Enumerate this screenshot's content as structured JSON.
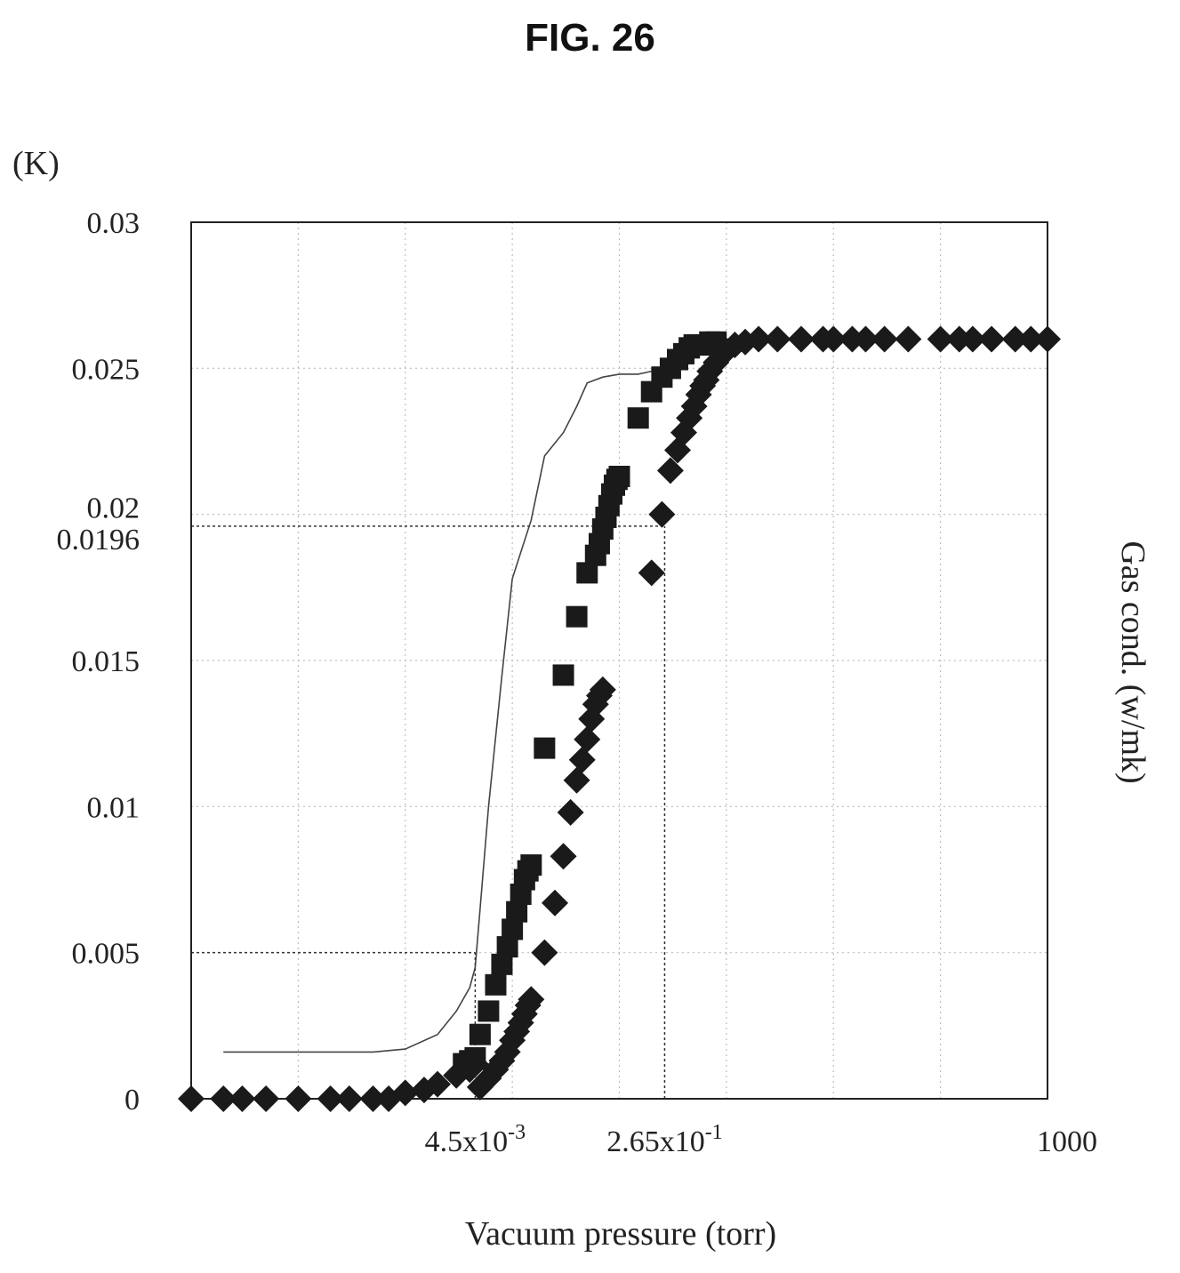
{
  "figure": {
    "title": "FIG. 26"
  },
  "chart_data": {
    "type": "scatter",
    "title": "",
    "ylabel_left": "(K)",
    "ylabel_right": "Gas cond. (w/mk)",
    "xlabel": "Vacuum pressure (torr)",
    "xscale": "log",
    "xlim": [
      1e-05,
      1000
    ],
    "ylim": [
      0,
      0.03
    ],
    "yticks": [
      {
        "value": 0,
        "label": "0"
      },
      {
        "value": 0.005,
        "label": "0.005"
      },
      {
        "value": 0.01,
        "label": "0.01"
      },
      {
        "value": 0.015,
        "label": "0.015"
      },
      {
        "value": 0.0196,
        "label": "0.0196"
      },
      {
        "value": 0.02,
        "label": "0.02"
      },
      {
        "value": 0.025,
        "label": "0.025"
      },
      {
        "value": 0.03,
        "label": "0.03"
      }
    ],
    "xticks": [
      {
        "value": 0.0045,
        "base": "4.5x10",
        "exp": "-3"
      },
      {
        "value": 0.265,
        "base": "2.65x10",
        "exp": "-1"
      },
      {
        "value": 1000,
        "base": "1000",
        "exp": ""
      }
    ],
    "grid": true,
    "reference_lines": [
      {
        "axis": "y",
        "value": 0.005,
        "x_to": 0.0045
      },
      {
        "axis": "x",
        "value": 0.0045,
        "y_to": 0.005
      },
      {
        "axis": "y",
        "value": 0.0196,
        "x_to": 0.265
      },
      {
        "axis": "x",
        "value": 0.265,
        "y_to": 0.0196
      }
    ],
    "series": [
      {
        "marker": "line",
        "x": [
          2e-05,
          0.0001,
          0.0005,
          0.001,
          0.002,
          0.003,
          0.004,
          0.0045,
          0.005,
          0.006,
          0.008,
          0.01,
          0.015,
          0.02,
          0.03,
          0.04,
          0.05,
          0.07,
          0.1,
          0.15,
          0.2,
          0.26
        ],
        "y": [
          0.0016,
          0.0016,
          0.0016,
          0.0017,
          0.0022,
          0.003,
          0.0038,
          0.0045,
          0.0065,
          0.01,
          0.0145,
          0.0178,
          0.0198,
          0.022,
          0.0228,
          0.0237,
          0.0245,
          0.0247,
          0.0248,
          0.0248,
          0.0249,
          0.025
        ]
      },
      {
        "marker": "square",
        "x": [
          0.0035,
          0.004,
          0.0045,
          0.005,
          0.006,
          0.007,
          0.008,
          0.009,
          0.01,
          0.011,
          0.012,
          0.013,
          0.014,
          0.015,
          0.02,
          0.03,
          0.04,
          0.05,
          0.06,
          0.065,
          0.07,
          0.075,
          0.08,
          0.085,
          0.09,
          0.095,
          0.1,
          0.15,
          0.2,
          0.25,
          0.3,
          0.35,
          0.4,
          0.45,
          0.5,
          0.55,
          0.6,
          0.7,
          0.8
        ],
        "y": [
          0.0012,
          0.0013,
          0.0014,
          0.0022,
          0.003,
          0.0039,
          0.0046,
          0.0052,
          0.0058,
          0.0064,
          0.007,
          0.0075,
          0.0078,
          0.008,
          0.012,
          0.0145,
          0.0165,
          0.018,
          0.0186,
          0.019,
          0.0195,
          0.0199,
          0.0203,
          0.0207,
          0.021,
          0.0212,
          0.0213,
          0.0233,
          0.0242,
          0.0247,
          0.025,
          0.0253,
          0.0255,
          0.0257,
          0.0258,
          0.0258,
          0.0258,
          0.0259,
          0.0259
        ]
      },
      {
        "marker": "diamond",
        "x": [
          1e-05,
          2e-05,
          3e-05,
          5e-05,
          0.0001,
          0.0002,
          0.0003,
          0.0005,
          0.0007,
          0.001,
          0.0015,
          0.002,
          0.003,
          0.004,
          0.0045,
          0.005,
          0.006,
          0.007,
          0.008,
          0.009,
          0.01,
          0.011,
          0.012,
          0.013,
          0.014,
          0.015,
          0.02,
          0.025,
          0.03,
          0.035,
          0.04,
          0.045,
          0.05,
          0.055,
          0.06,
          0.065,
          0.07,
          0.2,
          0.25,
          0.3,
          0.35,
          0.4,
          0.45,
          0.5,
          0.55,
          0.6,
          0.65,
          0.7,
          0.8,
          0.9,
          1.0,
          1.2,
          1.5,
          2,
          3,
          5,
          8,
          10,
          15,
          20,
          30,
          50,
          100,
          150,
          200,
          300,
          500,
          700,
          1000
        ],
        "y": [
          0,
          0,
          0,
          0,
          0,
          0,
          0,
          0,
          0,
          0.0002,
          0.0003,
          0.0005,
          0.0008,
          0.001,
          0.0012,
          0.0004,
          0.0007,
          0.001,
          0.0013,
          0.0016,
          0.002,
          0.0023,
          0.0026,
          0.0029,
          0.0032,
          0.0034,
          0.005,
          0.0067,
          0.0083,
          0.0098,
          0.0109,
          0.0116,
          0.0123,
          0.013,
          0.0135,
          0.0138,
          0.014,
          0.018,
          0.02,
          0.0215,
          0.0222,
          0.0228,
          0.0233,
          0.0237,
          0.0241,
          0.0244,
          0.0246,
          0.0249,
          0.0252,
          0.0255,
          0.0256,
          0.0258,
          0.0259,
          0.026,
          0.026,
          0.026,
          0.026,
          0.026,
          0.026,
          0.026,
          0.026,
          0.026,
          0.026,
          0.026,
          0.026,
          0.026,
          0.026,
          0.026,
          0.026
        ]
      }
    ]
  }
}
